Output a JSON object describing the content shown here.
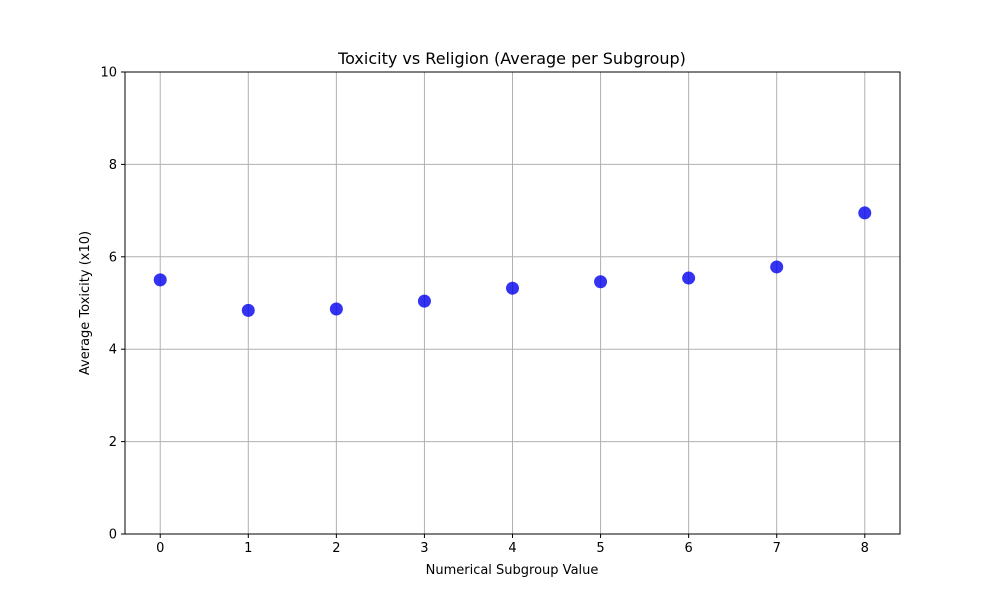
{
  "chart_data": {
    "type": "scatter",
    "title": "Toxicity vs Religion (Average per Subgroup)",
    "xlabel": "Numerical Subgroup Value",
    "ylabel": "Average Toxicity (x10)",
    "x": [
      0,
      1,
      2,
      3,
      4,
      5,
      6,
      7,
      8
    ],
    "y": [
      5.5,
      4.84,
      4.87,
      5.04,
      5.32,
      5.46,
      5.54,
      5.78,
      6.95
    ],
    "xlim": [
      -0.4,
      8.4
    ],
    "ylim": [
      0,
      10
    ],
    "xticks": [
      0,
      1,
      2,
      3,
      4,
      5,
      6,
      7,
      8
    ],
    "yticks": [
      0,
      2,
      4,
      6,
      8,
      10
    ],
    "grid": true,
    "legend": "none",
    "marker_color": "#0000ee",
    "grid_color": "#b0b0b0"
  }
}
